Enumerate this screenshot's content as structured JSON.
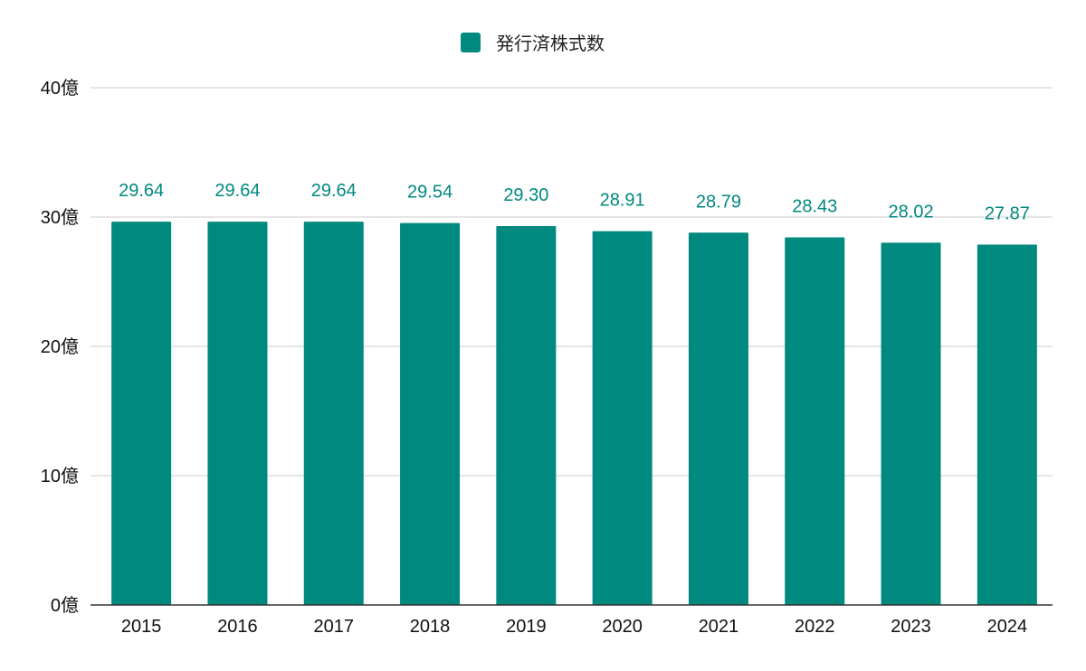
{
  "chart_data": {
    "type": "bar",
    "categories": [
      "2015",
      "2016",
      "2017",
      "2018",
      "2019",
      "2020",
      "2021",
      "2022",
      "2023",
      "2024"
    ],
    "series": [
      {
        "name": "発行済株式数",
        "values": [
          29.64,
          29.64,
          29.64,
          29.54,
          29.3,
          28.91,
          28.79,
          28.43,
          28.02,
          27.87
        ],
        "data_labels": [
          "29.64",
          "29.64",
          "29.64",
          "29.54",
          "29.30",
          "28.91",
          "28.79",
          "28.43",
          "28.02",
          "27.87"
        ],
        "color": "#00897f"
      }
    ],
    "yunit": "億",
    "ylim": [
      0,
      40
    ],
    "yticks": [
      0,
      10,
      20,
      30,
      40
    ],
    "ytick_labels": [
      "0億",
      "10億",
      "20億",
      "30億",
      "40億"
    ],
    "grid": true,
    "legend": "top-center",
    "colors": {
      "gridline": "#cccccc",
      "axis": "#333333",
      "label": "#00897f"
    }
  }
}
